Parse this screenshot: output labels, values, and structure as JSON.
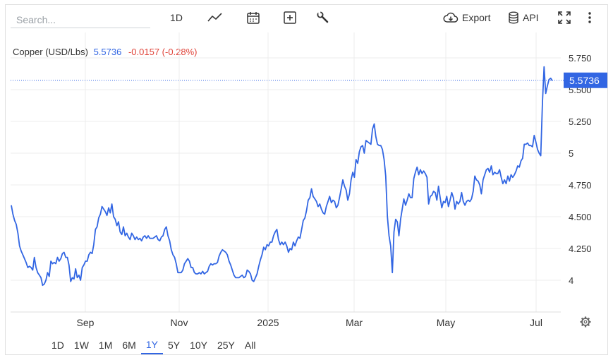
{
  "toolbar": {
    "search_placeholder": "Search...",
    "interval_label": "1D",
    "export_label": "Export",
    "api_label": "API",
    "icons": [
      "line-chart-icon",
      "calendar-icon",
      "plus-box-icon",
      "wrench-icon",
      "cloud-download-icon",
      "database-icon",
      "fullscreen-icon",
      "more-vert-icon"
    ]
  },
  "header": {
    "name": "Copper (USD/Lbs)",
    "price": "5.5736",
    "change": "-0.0157 (-0.28%)"
  },
  "ranges": {
    "items": [
      "1D",
      "1W",
      "1M",
      "6M",
      "1Y",
      "5Y",
      "10Y",
      "25Y",
      "All"
    ],
    "active": "1Y"
  },
  "colors": {
    "line": "#3266e3",
    "down": "#e0453b",
    "grid": "#ececec",
    "text": "#333333"
  },
  "chart_data": {
    "type": "line",
    "series": [
      {
        "values": [
          4.59,
          4.52,
          4.47,
          4.44,
          4.37,
          4.27,
          4.23,
          4.2,
          4.17,
          4.14,
          4.1,
          4.11,
          4.1,
          4.08,
          4.18,
          4.1,
          4.06,
          4.04,
          4.02,
          3.96,
          3.97,
          4.0,
          4.06,
          4.03,
          4.15,
          4.13,
          4.14,
          4.13,
          4.18,
          4.15,
          4.17,
          4.21,
          4.22,
          4.18,
          4.18,
          4.12,
          3.99,
          4.02,
          4.01,
          4.09,
          4.02,
          4.04,
          4.0,
          4.1,
          4.12,
          4.15,
          4.15,
          4.2,
          4.22,
          4.21,
          4.28,
          4.4,
          4.42,
          4.49,
          4.52,
          4.58,
          4.56,
          4.54,
          4.51,
          4.57,
          4.53,
          4.6,
          4.5,
          4.48,
          4.43,
          4.46,
          4.38,
          4.36,
          4.42,
          4.35,
          4.37,
          4.34,
          4.32,
          4.37,
          4.35,
          4.32,
          4.34,
          4.32,
          4.33,
          4.31,
          4.34,
          4.35,
          4.33,
          4.35,
          4.33,
          4.33,
          4.33,
          4.34,
          4.35,
          4.32,
          4.31,
          4.34,
          4.35,
          4.4,
          4.42,
          4.35,
          4.31,
          4.24,
          4.2,
          4.18,
          4.13,
          4.06,
          4.06,
          4.06,
          4.08,
          4.13,
          4.15,
          4.17,
          4.15,
          4.1,
          4.1,
          4.06,
          4.05,
          4.05,
          4.06,
          4.05,
          4.07,
          4.05,
          4.06,
          4.07,
          4.11,
          4.13,
          4.12,
          4.13,
          4.13,
          4.14,
          4.19,
          4.22,
          4.24,
          4.23,
          4.22,
          4.2,
          4.15,
          4.12,
          4.08,
          4.04,
          4.02,
          4.02,
          4.02,
          4.03,
          4.04,
          4.02,
          4.03,
          4.08,
          4.07,
          4.05,
          4.0,
          3.99,
          4.02,
          4.05,
          4.11,
          4.16,
          4.2,
          4.26,
          4.24,
          4.28,
          4.27,
          4.3,
          4.3,
          4.35,
          4.38,
          4.4,
          4.32,
          4.28,
          4.3,
          4.28,
          4.3,
          4.27,
          4.22,
          4.25,
          4.24,
          4.3,
          4.27,
          4.31,
          4.34,
          4.33,
          4.4,
          4.47,
          4.49,
          4.55,
          4.63,
          4.65,
          4.72,
          4.66,
          4.64,
          4.62,
          4.58,
          4.6,
          4.56,
          4.53,
          4.52,
          4.58,
          4.62,
          4.66,
          4.61,
          4.63,
          4.62,
          4.57,
          4.59,
          4.65,
          4.72,
          4.79,
          4.74,
          4.71,
          4.63,
          4.68,
          4.79,
          4.85,
          4.81,
          4.95,
          4.92,
          5.01,
          5.05,
          5.06,
          5.0,
          5.1,
          5.09,
          5.08,
          5.07,
          5.19,
          5.23,
          5.13,
          5.07,
          5.06,
          5.06,
          5.03,
          4.95,
          4.82,
          4.5,
          4.35,
          4.27,
          4.06,
          4.38,
          4.48,
          4.46,
          4.35,
          4.48,
          4.56,
          4.64,
          4.59,
          4.63,
          4.68,
          4.65,
          4.65,
          4.8,
          4.85,
          4.89,
          4.83,
          4.87,
          4.84,
          4.86,
          4.84,
          4.81,
          4.6,
          4.66,
          4.67,
          4.7,
          4.69,
          4.63,
          4.74,
          4.65,
          4.57,
          4.62,
          4.61,
          4.66,
          4.58,
          4.63,
          4.69,
          4.65,
          4.56,
          4.62,
          4.6,
          4.62,
          4.69,
          4.62,
          4.59,
          4.62,
          4.63,
          4.62,
          4.64,
          4.7,
          4.82,
          4.79,
          4.78,
          4.75,
          4.68,
          4.79,
          4.83,
          4.87,
          4.88,
          4.85,
          4.9,
          4.83,
          4.85,
          4.84,
          4.84,
          4.87,
          4.81,
          4.76,
          4.79,
          4.76,
          4.82,
          4.78,
          4.83,
          4.81,
          4.83,
          4.86,
          4.9,
          4.89,
          4.94,
          4.96,
          5.07,
          5.07,
          5.08,
          5.06,
          5.06,
          5.05,
          5.14,
          5.09,
          5.03,
          5.0,
          4.98,
          5.4,
          5.68,
          5.47,
          5.53,
          5.58,
          5.59,
          5.57
        ],
        "color": "#3266e3"
      }
    ],
    "x_labels": [
      "Sep",
      "Nov",
      "2025",
      "Mar",
      "May",
      "Jul"
    ],
    "y_ticks": [
      4,
      4.25,
      4.5,
      4.75,
      5,
      5.25,
      5.5,
      5.75
    ],
    "y_tick_labels": [
      "4",
      "4.250",
      "4.500",
      "4.750",
      "5",
      "5.250",
      "5.500",
      "5.750"
    ],
    "ylim": [
      3.75,
      5.95
    ],
    "last_value": 5.5736,
    "last_value_label": "5.5736",
    "grid": true
  }
}
